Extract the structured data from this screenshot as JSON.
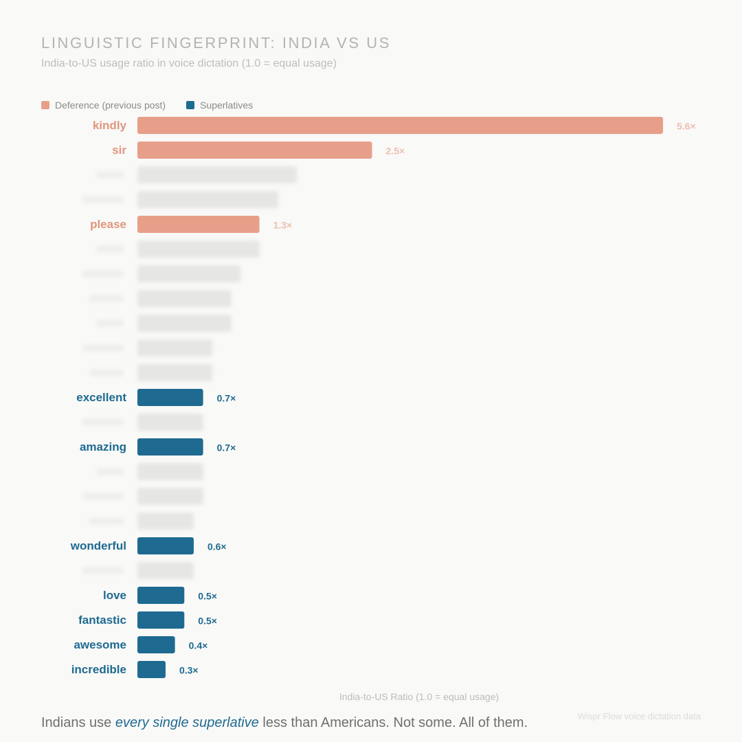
{
  "header": {
    "title": "LINGUISTIC FINGERPRINT: INDIA VS US",
    "subtitle": "India-to-US usage ratio in voice dictation (1.0 = equal usage)"
  },
  "legend": [
    {
      "label": "Deference (previous post)",
      "color": "#e79f8a"
    },
    {
      "label": "Superlatives",
      "color": "#1e6a91"
    }
  ],
  "colors": {
    "deference": "#e79f8a",
    "deference_text": "#e0967f",
    "deference_value": "#edbfb0",
    "superlative": "#1e6a91",
    "blurred": "#e6e6e4"
  },
  "chart_data": {
    "type": "bar",
    "orientation": "horizontal",
    "title": "LINGUISTIC FINGERPRINT: INDIA VS US",
    "subtitle": "India-to-US usage ratio in voice dictation (1.0 = equal usage)",
    "xlabel": "India-to-US Ratio (1.0 = equal usage)",
    "ylabel": "",
    "xlim": [
      0,
      5.6
    ],
    "grid": false,
    "legend_position": "top-left",
    "rows": [
      {
        "label": "kindly",
        "value": 5.6,
        "display": "5.6×",
        "group": "deference"
      },
      {
        "label": "sir",
        "value": 2.5,
        "display": "2.5×",
        "group": "deference"
      },
      {
        "label": "",
        "value": 1.7,
        "display": "",
        "group": "blurred"
      },
      {
        "label": "",
        "value": 1.5,
        "display": "",
        "group": "blurred"
      },
      {
        "label": "please",
        "value": 1.3,
        "display": "1.3×",
        "group": "deference"
      },
      {
        "label": "",
        "value": 1.3,
        "display": "",
        "group": "blurred"
      },
      {
        "label": "",
        "value": 1.1,
        "display": "",
        "group": "blurred"
      },
      {
        "label": "",
        "value": 1.0,
        "display": "",
        "group": "blurred"
      },
      {
        "label": "",
        "value": 1.0,
        "display": "",
        "group": "blurred"
      },
      {
        "label": "",
        "value": 0.8,
        "display": "",
        "group": "blurred"
      },
      {
        "label": "",
        "value": 0.8,
        "display": "",
        "group": "blurred"
      },
      {
        "label": "excellent",
        "value": 0.7,
        "display": "0.7×",
        "group": "superlative"
      },
      {
        "label": "",
        "value": 0.7,
        "display": "",
        "group": "blurred"
      },
      {
        "label": "amazing",
        "value": 0.7,
        "display": "0.7×",
        "group": "superlative"
      },
      {
        "label": "",
        "value": 0.7,
        "display": "",
        "group": "blurred"
      },
      {
        "label": "",
        "value": 0.7,
        "display": "",
        "group": "blurred"
      },
      {
        "label": "",
        "value": 0.6,
        "display": "",
        "group": "blurred"
      },
      {
        "label": "wonderful",
        "value": 0.6,
        "display": "0.6×",
        "group": "superlative"
      },
      {
        "label": "",
        "value": 0.6,
        "display": "",
        "group": "blurred"
      },
      {
        "label": "love",
        "value": 0.5,
        "display": "0.5×",
        "group": "superlative"
      },
      {
        "label": "fantastic",
        "value": 0.5,
        "display": "0.5×",
        "group": "superlative"
      },
      {
        "label": "awesome",
        "value": 0.4,
        "display": "0.4×",
        "group": "superlative"
      },
      {
        "label": "incredible",
        "value": 0.3,
        "display": "0.3×",
        "group": "superlative"
      }
    ]
  },
  "footer": {
    "prefix": "Indians use ",
    "emphasis": "every single superlative",
    "suffix": " less than Americans. Not some. All of them."
  },
  "source": "Wispr Flow voice dictation data"
}
